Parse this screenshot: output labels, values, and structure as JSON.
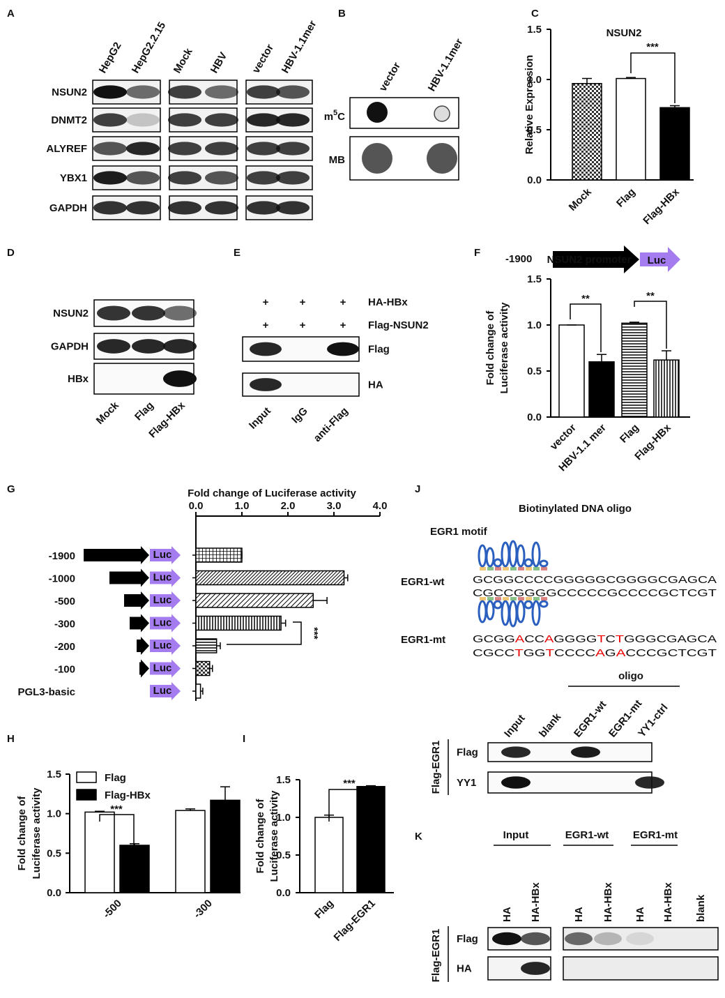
{
  "panels": {
    "A": {
      "letter": "A",
      "lanes": [
        "HepG2",
        "HepG2.2.15",
        "Mock",
        "HBV",
        "vector",
        "HBV-1.1mer"
      ],
      "rows": [
        "NSUN2",
        "DNMT2",
        "ALYREF",
        "YBX1",
        "GAPDH"
      ]
    },
    "B": {
      "letter": "B",
      "lanes": [
        "vector",
        "HBV-1.1mer"
      ],
      "m5c": {
        "base": "m",
        "sup": "5",
        "tail": "C"
      },
      "mb": "MB"
    },
    "D": {
      "letter": "D",
      "lanes": [
        "Mock",
        "Flag",
        "Flag-HBx"
      ],
      "rows": [
        "NSUN2",
        "GAPDH",
        "HBx"
      ]
    },
    "E": {
      "letter": "E",
      "conditions": [
        {
          "label": "HA-HBx",
          "marks": [
            "+",
            "+",
            "+"
          ]
        },
        {
          "label": "Flag-NSUN2",
          "marks": [
            "+",
            "+",
            "+"
          ]
        }
      ],
      "rows": [
        "Flag",
        "HA"
      ],
      "lanes": [
        "Input",
        "IgG",
        "anti-Flag"
      ]
    },
    "J": {
      "letter": "J",
      "title": "Biotinylated DNA oligo",
      "motif_label": "EGR1 motif",
      "wt": {
        "label": "EGR1-wt",
        "top": [
          "GCGGCCCCGGGGGCGGGGCGAGCA"
        ],
        "bottom": [
          "CGCCGGGGCCCCCGCCCCGCTCGT"
        ]
      },
      "mt": {
        "label": "EGR1-mt",
        "top": [
          "GCGG",
          "A",
          "CC",
          "A",
          "GGGG",
          "T",
          "C",
          "T",
          "GGGCGAGCA"
        ],
        "bottom": [
          "CGCC",
          "T",
          "GG",
          "T",
          "CCCC",
          "A",
          "G",
          "A",
          "CCCGCTCGT"
        ]
      },
      "pulldown": {
        "group_label": "oligo",
        "lanes": [
          "Input",
          "blank",
          "EGR1-wt",
          "EGR1-mt",
          "YY1-ctrl"
        ],
        "rows": [
          "Flag",
          "YY1"
        ],
        "side_label": "Flag-EGR1"
      }
    },
    "K": {
      "letter": "K",
      "groups": [
        "Input",
        "EGR1-wt",
        "EGR1-mt"
      ],
      "lanes": [
        "HA",
        "HA-HBx",
        "HA",
        "HA-HBx",
        "HA",
        "HA-HBx",
        "blank"
      ],
      "rows": [
        "Flag",
        "HA"
      ],
      "side_label": "Flag-EGR1"
    }
  },
  "chart_data": [
    {
      "type": "bar",
      "panel": "C",
      "title": "NSUN2",
      "y_label": [
        "Relative Expression"
      ],
      "categories": [
        "Mock",
        "Flag",
        "Flag-HBx"
      ],
      "values": [
        0.96,
        1.01,
        0.72
      ],
      "errors": [
        0.05,
        0.01,
        0.02
      ],
      "fills": [
        "checker",
        "white",
        "black"
      ],
      "ylim": [
        0,
        1.5
      ],
      "yticks": [
        {
          "value": 0,
          "label": "0.0"
        },
        0.5,
        {
          "value": 1,
          "label": "1.0"
        },
        1.5
      ],
      "annotations": [
        "***"
      ]
    },
    {
      "type": "bar",
      "panel": "F",
      "y_label": [
        "Fold change of",
        "Luciferase activity"
      ],
      "promoter_start": "-1900",
      "promoter_label": "NSUN2 promoter",
      "reporter_label": "Luc",
      "categories": [
        "vector",
        "HBV-1.1 mer",
        "Flag",
        "Flag-HBx"
      ],
      "values": [
        1.0,
        0.6,
        1.02,
        0.62
      ],
      "errors": [
        0,
        0.08,
        0.01,
        0.1
      ],
      "fills": [
        "white",
        "black",
        "hstripes",
        "vstripes"
      ],
      "ylim": [
        0,
        1.5
      ],
      "yticks": [
        {
          "value": 0,
          "label": "0.0"
        },
        0.5,
        {
          "value": 1,
          "label": "1.0"
        },
        1.5
      ],
      "annotations": [
        "**",
        "**"
      ]
    },
    {
      "type": "barh",
      "panel": "G",
      "x_label": "Fold change of  Luciferase activity",
      "construct_label": "Luc",
      "categories": [
        "-1900",
        "-1000",
        "-500",
        "-300",
        "-200",
        "-100",
        "PGL3-basic"
      ],
      "values": [
        1.0,
        3.22,
        2.55,
        1.85,
        0.45,
        0.3,
        0.1
      ],
      "errors": [
        0,
        0.08,
        0.3,
        0.1,
        0.08,
        0.06,
        0.05
      ],
      "fills": [
        "grid",
        "diagdense",
        "diag",
        "vstripes",
        "hstripes",
        "checker",
        "white"
      ],
      "xlim": [
        0,
        4
      ],
      "xticks": [
        {
          "value": 0,
          "label": "0.0"
        },
        {
          "value": 1,
          "label": "1.0"
        },
        {
          "value": 2,
          "label": "2.0"
        },
        {
          "value": 3,
          "label": "3.0"
        },
        {
          "value": 4,
          "label": "4.0"
        }
      ],
      "annotations": [
        "***"
      ]
    },
    {
      "type": "grouped_bar",
      "panel": "H",
      "y_label": [
        "Fold change of",
        "Luciferase activity"
      ],
      "categories": [
        "-500",
        "-300"
      ],
      "series": [
        {
          "name": "Flag",
          "color": "#ffffff",
          "values": [
            1.02,
            1.04
          ],
          "errors": [
            0.01,
            0.02
          ]
        },
        {
          "name": "Flag-HBx",
          "color": "#000000",
          "values": [
            0.6,
            1.17
          ],
          "errors": [
            0.02,
            0.17
          ]
        }
      ],
      "ylim": [
        0,
        1.5
      ],
      "yticks": [
        {
          "value": 0,
          "label": "0.0"
        },
        0.5,
        {
          "value": 1,
          "label": "1.0"
        },
        1.5
      ],
      "annotations": [
        "***"
      ]
    },
    {
      "type": "bar",
      "panel": "I",
      "y_label": [
        "Fold change of",
        "Luciferase activity"
      ],
      "categories": [
        "Flag",
        "Flag-EGR1"
      ],
      "values": [
        1.0,
        1.41
      ],
      "errors": [
        0.03,
        0.01
      ],
      "fills": [
        "white",
        "black"
      ],
      "ylim": [
        0,
        1.5
      ],
      "yticks": [
        {
          "value": 0,
          "label": "0.0"
        },
        0.5,
        {
          "value": 1,
          "label": "1.0"
        },
        1.5
      ],
      "annotations": [
        "***"
      ]
    }
  ]
}
